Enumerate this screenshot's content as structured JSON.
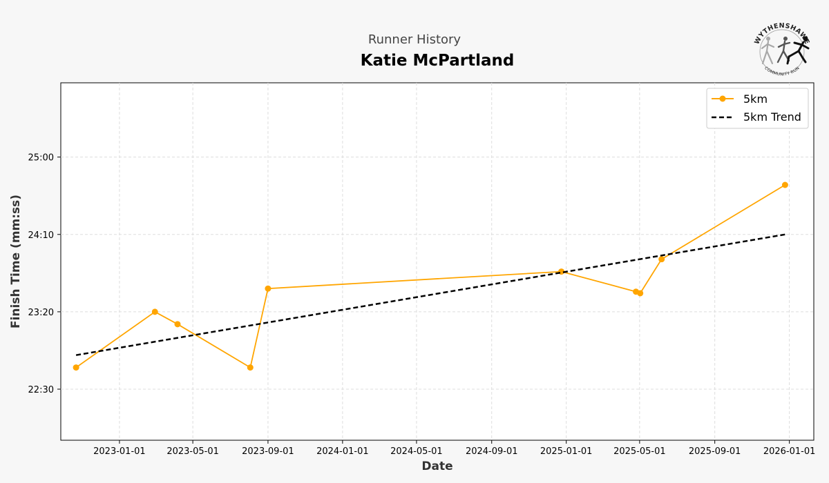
{
  "header": {
    "subtitle": "Runner History",
    "title": "Katie McPartland"
  },
  "logo": {
    "top_text": "WYTHENSHAWE",
    "bottom_text": "COMMUNITY RUN"
  },
  "chart_data": {
    "type": "line",
    "xlabel": "Date",
    "ylabel": "Finish Time (mm:ss)",
    "x_ticks": [
      "2023-01-01",
      "2023-05-01",
      "2023-09-01",
      "2024-01-01",
      "2024-05-01",
      "2024-09-01",
      "2025-01-01",
      "2025-05-01",
      "2025-09-01",
      "2026-01-01"
    ],
    "y_ticks": [
      "22:30",
      "23:20",
      "24:10",
      "25:00"
    ],
    "xlim": [
      "2022-09-27",
      "2026-02-10"
    ],
    "ylim_seconds": [
      1317,
      1548
    ],
    "grid": true,
    "legend_position": "top-right",
    "series": [
      {
        "name": "5km",
        "color": "#FFA500",
        "marker": "circle",
        "points": [
          {
            "x": "2022-10-22",
            "y": "22:44"
          },
          {
            "x": "2023-02-28",
            "y": "23:20"
          },
          {
            "x": "2023-04-06",
            "y": "23:12"
          },
          {
            "x": "2023-08-03",
            "y": "22:44"
          },
          {
            "x": "2023-09-01",
            "y": "23:35"
          },
          {
            "x": "2024-12-24",
            "y": "23:46"
          },
          {
            "x": "2025-04-25",
            "y": "23:33"
          },
          {
            "x": "2025-05-02",
            "y": "23:32"
          },
          {
            "x": "2025-06-06",
            "y": "23:54"
          },
          {
            "x": "2025-12-25",
            "y": "24:42"
          }
        ]
      },
      {
        "name": "5km Trend",
        "color": "#000000",
        "style": "dashed",
        "points": [
          {
            "x": "2022-10-22",
            "y": "22:52"
          },
          {
            "x": "2025-12-25",
            "y": "24:10"
          }
        ]
      }
    ]
  }
}
